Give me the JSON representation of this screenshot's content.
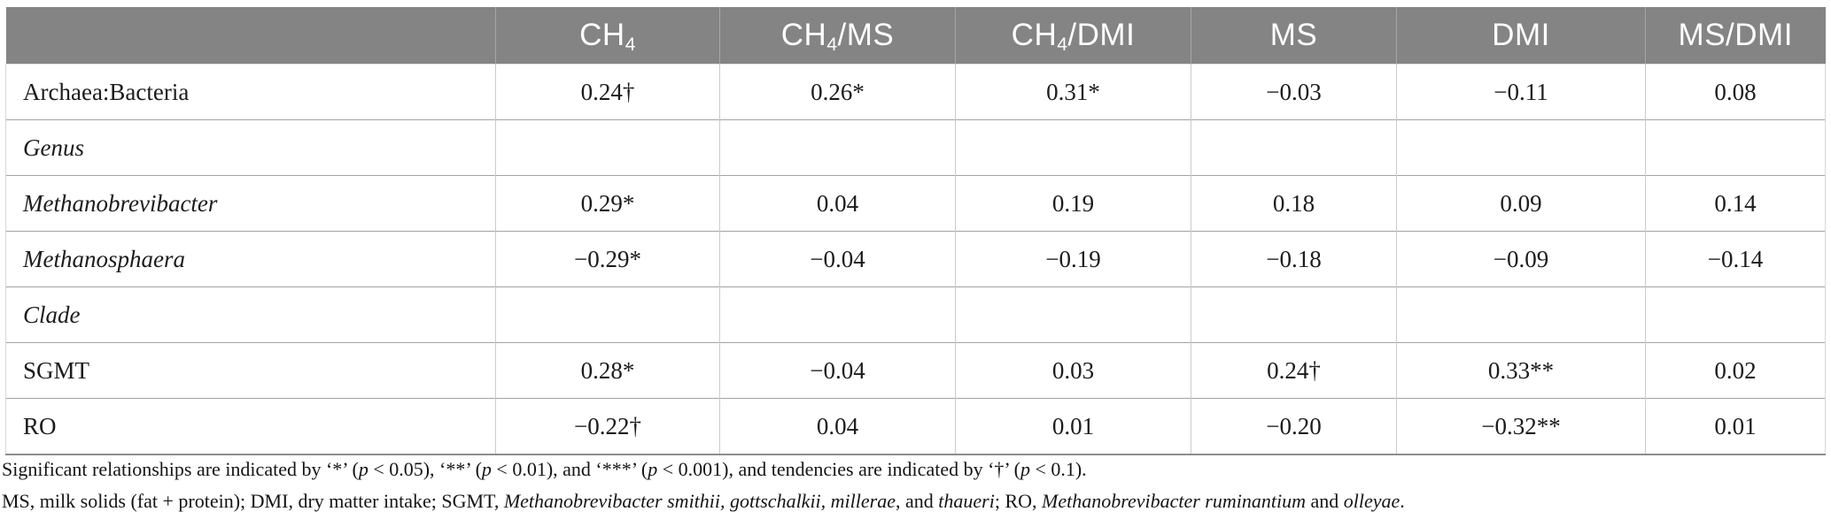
{
  "colors": {
    "header_bg": "#848484",
    "header_text": "#ffffff",
    "row_line": "#a3a3a3",
    "col_line": "#cbcbcb"
  },
  "table": {
    "columns": [
      {
        "key": "row-label",
        "parts": [
          {
            "t": ""
          }
        ]
      },
      {
        "key": "ch4",
        "parts": [
          {
            "t": "CH"
          },
          {
            "t": "4",
            "sub": true
          }
        ]
      },
      {
        "key": "ch4-ms",
        "parts": [
          {
            "t": "CH"
          },
          {
            "t": "4",
            "sub": true
          },
          {
            "t": "/MS"
          }
        ]
      },
      {
        "key": "ch4-dmi",
        "parts": [
          {
            "t": "CH"
          },
          {
            "t": "4",
            "sub": true
          },
          {
            "t": "/DMI"
          }
        ]
      },
      {
        "key": "ms",
        "parts": [
          {
            "t": "MS"
          }
        ]
      },
      {
        "key": "dmi",
        "parts": [
          {
            "t": "DMI"
          }
        ]
      },
      {
        "key": "ms-dmi",
        "parts": [
          {
            "t": "MS/DMI"
          }
        ]
      }
    ],
    "rows": [
      {
        "label": "Archaea:Bacteria",
        "italic": false,
        "values": [
          "0.24†",
          "0.26*",
          "0.31*",
          "−0.03",
          "−0.11",
          "0.08"
        ]
      },
      {
        "label": "Genus",
        "italic": true,
        "values": [
          "",
          "",
          "",
          "",
          "",
          ""
        ]
      },
      {
        "label": "Methanobrevibacter",
        "italic": true,
        "values": [
          "0.29*",
          "0.04",
          "0.19",
          "0.18",
          "0.09",
          "0.14"
        ]
      },
      {
        "label": "Methanosphaera",
        "italic": true,
        "values": [
          "−0.29*",
          "−0.04",
          "−0.19",
          "−0.18",
          "−0.09",
          "−0.14"
        ]
      },
      {
        "label": "Clade",
        "italic": true,
        "values": [
          "",
          "",
          "",
          "",
          "",
          ""
        ]
      },
      {
        "label": "SGMT",
        "italic": false,
        "values": [
          "0.28*",
          "−0.04",
          "0.03",
          "0.24†",
          "0.33**",
          "0.02"
        ]
      },
      {
        "label": "RO",
        "italic": false,
        "values": [
          "−0.22†",
          "0.04",
          "0.01",
          "−0.20",
          "−0.32**",
          "0.01"
        ]
      }
    ]
  },
  "footnotes": [
    {
      "segments": [
        {
          "text": "Significant relationships are indicated by ‘*’ ("
        },
        {
          "text": "p",
          "italic": true
        },
        {
          "text": " < 0.05), ‘**’ ("
        },
        {
          "text": "p",
          "italic": true
        },
        {
          "text": " < 0.01), and ‘***’ ("
        },
        {
          "text": "p",
          "italic": true
        },
        {
          "text": " < 0.001), and tendencies are indicated by ‘†’ ("
        },
        {
          "text": "p",
          "italic": true
        },
        {
          "text": " < 0.1)."
        }
      ]
    },
    {
      "segments": [
        {
          "text": "MS, milk solids (fat + protein); DMI, dry matter intake; SGMT, "
        },
        {
          "text": "Methanobrevibacter smithii, gottschalkii, millerae",
          "italic": true
        },
        {
          "text": ", and "
        },
        {
          "text": "thaueri",
          "italic": true
        },
        {
          "text": "; RO, "
        },
        {
          "text": "Methanobrevibacter ruminantium",
          "italic": true
        },
        {
          "text": " and "
        },
        {
          "text": "olleyae",
          "italic": true
        },
        {
          "text": "."
        }
      ]
    }
  ]
}
